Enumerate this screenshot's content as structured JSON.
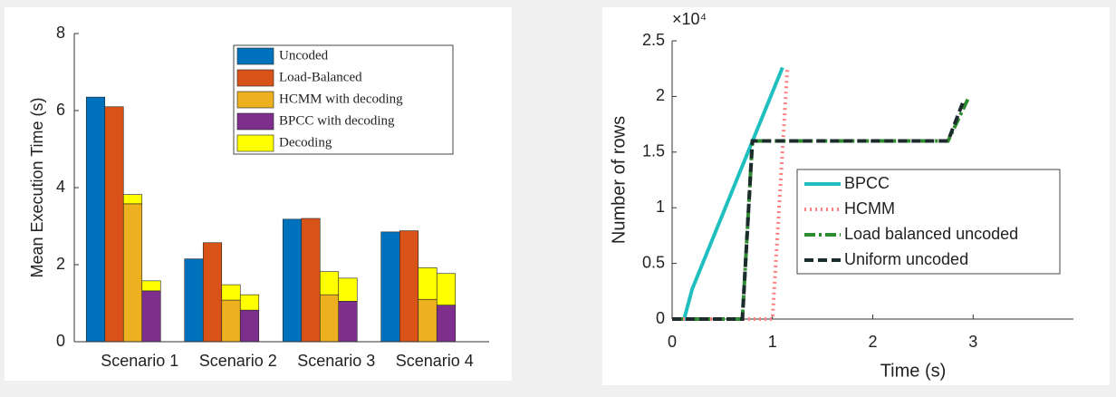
{
  "chart_data": [
    {
      "type": "bar",
      "ylabel": "Mean Execution Time (s)",
      "categories": [
        "Scenario 1",
        "Scenario 2",
        "Scenario 3",
        "Scenario 4"
      ],
      "series": [
        {
          "name": "Uncoded",
          "color": "#0072bd",
          "values": [
            6.35,
            2.15,
            3.18,
            2.85
          ]
        },
        {
          "name": "Load-Balanced",
          "color": "#d95319",
          "values": [
            6.1,
            2.57,
            3.2,
            2.88
          ]
        },
        {
          "name": "HCMM with decoding",
          "color": "#edb120",
          "values": [
            3.58,
            1.08,
            1.22,
            1.1
          ]
        },
        {
          "name": "BPCC with decoding",
          "color": "#7e2f8e",
          "values": [
            1.32,
            0.82,
            1.05,
            0.95
          ]
        },
        {
          "name": "Decoding",
          "color": "#ffff00",
          "stacked_on": [
            2,
            3
          ],
          "values": [
            [
              0.24,
              0.26
            ],
            [
              0.4,
              0.4
            ],
            [
              0.6,
              0.6
            ],
            [
              0.82,
              0.82
            ]
          ]
        }
      ],
      "ylim": [
        0,
        8
      ],
      "yticks": [
        0,
        2,
        4,
        6,
        8
      ],
      "legend": "upper right"
    },
    {
      "type": "line",
      "xlabel": "Time (s)",
      "ylabel": "Number of rows",
      "y_multiplier": "×10⁴",
      "series": [
        {
          "name": "BPCC",
          "color": "#20bfbf",
          "linestyle": "solid",
          "x": [
            0,
            0.12,
            0.2,
            1.1
          ],
          "values": [
            0,
            0,
            2700,
            22600
          ]
        },
        {
          "name": "HCMM",
          "color": "#ff8080",
          "linestyle": "dotted",
          "x": [
            0,
            1.0,
            1.15
          ],
          "values": [
            0,
            0,
            22700
          ]
        },
        {
          "name": "Load balanced uncoded",
          "color": "#2e8b2e",
          "linestyle": "dashdot",
          "x": [
            0,
            0.7,
            0.8,
            2.75,
            2.95
          ],
          "values": [
            0,
            0,
            16000,
            16000,
            19800
          ]
        },
        {
          "name": "Uniform uncoded",
          "color": "#1c2b2b",
          "linestyle": "dashed",
          "x": [
            0,
            0.7,
            0.8,
            2.75,
            2.9
          ],
          "values": [
            0,
            0,
            16000,
            16000,
            19500
          ]
        }
      ],
      "xlim": [
        0,
        4
      ],
      "xticks": [
        0,
        1,
        2,
        3
      ],
      "ylim": [
        0,
        25000
      ],
      "yticks": [
        {
          "value": 0,
          "label": "0"
        },
        {
          "value": 5000,
          "label": "0.5"
        },
        {
          "value": 10000,
          "label": "1"
        },
        {
          "value": 15000,
          "label": "1.5"
        },
        {
          "value": 20000,
          "label": "2"
        },
        {
          "value": 25000,
          "label": "2.5"
        }
      ],
      "legend": "center right"
    }
  ]
}
